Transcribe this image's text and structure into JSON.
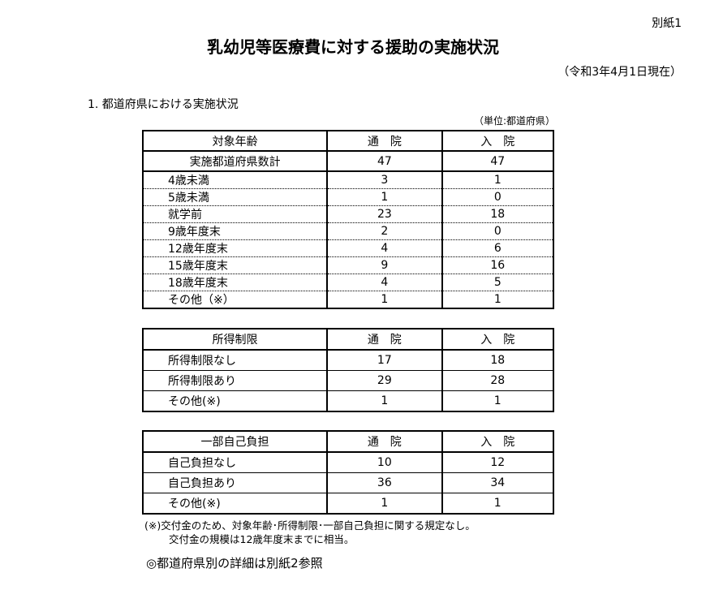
{
  "attachment_label": "別紙1",
  "title": "乳幼児等医療費に対する援助の実施状況",
  "as_of": "（令和3年4月1日現在）",
  "section_heading": "1. 都道府県における実施状況",
  "unit": "（単位:都道府県）",
  "table_age": {
    "headers": [
      "対象年齢",
      "通　院",
      "入　院"
    ],
    "total": {
      "label": "実施都道府県数計",
      "outpatient": "47",
      "inpatient": "47"
    },
    "rows": [
      {
        "label": "4歳未満",
        "outpatient": "3",
        "inpatient": "1"
      },
      {
        "label": "5歳未満",
        "outpatient": "1",
        "inpatient": "0"
      },
      {
        "label": "就学前",
        "outpatient": "23",
        "inpatient": "18"
      },
      {
        "label": "9歳年度末",
        "outpatient": "2",
        "inpatient": "0"
      },
      {
        "label": "12歳年度末",
        "outpatient": "4",
        "inpatient": "6"
      },
      {
        "label": "15歳年度末",
        "outpatient": "9",
        "inpatient": "16"
      },
      {
        "label": "18歳年度末",
        "outpatient": "4",
        "inpatient": "5"
      },
      {
        "label": "その他（※）",
        "outpatient": "1",
        "inpatient": "1"
      }
    ]
  },
  "table_income": {
    "headers": [
      "所得制限",
      "通　院",
      "入　院"
    ],
    "rows": [
      {
        "label": "所得制限なし",
        "outpatient": "17",
        "inpatient": "18"
      },
      {
        "label": "所得制限あり",
        "outpatient": "29",
        "inpatient": "28"
      },
      {
        "label": "その他(※)",
        "outpatient": "1",
        "inpatient": "1"
      }
    ]
  },
  "table_copay": {
    "headers": [
      "一部自己負担",
      "通　院",
      "入　院"
    ],
    "rows": [
      {
        "label": "自己負担なし",
        "outpatient": "10",
        "inpatient": "12"
      },
      {
        "label": "自己負担あり",
        "outpatient": "36",
        "inpatient": "34"
      },
      {
        "label": "その他(※)",
        "outpatient": "1",
        "inpatient": "1"
      }
    ]
  },
  "note_line1": "(※)交付金のため、対象年齢･所得制限･一部自己負担に関する規定なし。",
  "note_line2": "交付金の規模は12歳年度末までに相当。",
  "reference": "◎都道府県別の詳細は別紙2参照"
}
